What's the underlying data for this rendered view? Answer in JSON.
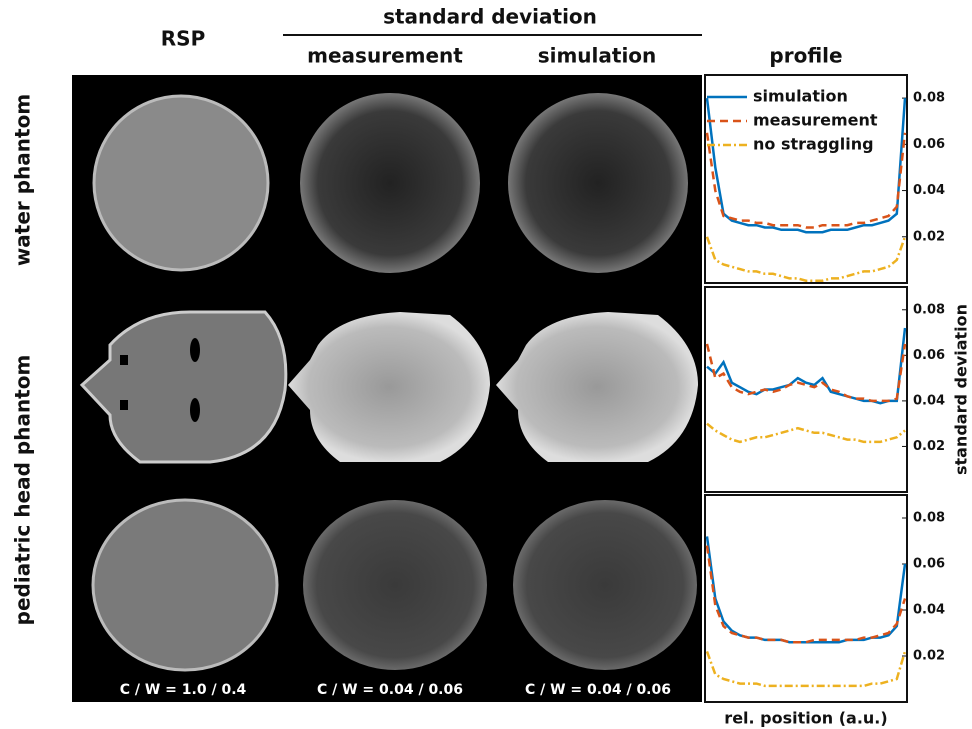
{
  "header": {
    "rsp": "RSP",
    "std_dev": "standard deviation",
    "measurement": "measurement",
    "simulation": "simulation",
    "profile": "profile"
  },
  "row_labels": [
    "water phantom",
    "pediatric head phantom"
  ],
  "window_labels": [
    "C / W = 1.0 / 0.4",
    "C / W = 0.04 / 0.06",
    "C / W = 0.04 / 0.06"
  ],
  "chart_data": [
    {
      "type": "line",
      "ylim": [
        0,
        0.09
      ],
      "yticks": [
        0.02,
        0.04,
        0.06,
        0.08
      ],
      "legend": "upper right",
      "series": [
        {
          "name": "simulation",
          "color": "#0072bd",
          "values": [
            0.08,
            0.05,
            0.03,
            0.027,
            0.026,
            0.025,
            0.025,
            0.024,
            0.024,
            0.023,
            0.023,
            0.023,
            0.022,
            0.022,
            0.022,
            0.023,
            0.023,
            0.023,
            0.024,
            0.025,
            0.025,
            0.026,
            0.027,
            0.03,
            0.08
          ]
        },
        {
          "name": "measurement",
          "color": "#d95319",
          "values": [
            0.065,
            0.04,
            0.029,
            0.028,
            0.027,
            0.027,
            0.026,
            0.026,
            0.025,
            0.025,
            0.025,
            0.025,
            0.024,
            0.024,
            0.025,
            0.025,
            0.025,
            0.025,
            0.026,
            0.026,
            0.027,
            0.028,
            0.029,
            0.033,
            0.065
          ]
        },
        {
          "name": "no straggling",
          "color": "#edb120",
          "values": [
            0.02,
            0.01,
            0.008,
            0.007,
            0.006,
            0.005,
            0.005,
            0.004,
            0.004,
            0.003,
            0.002,
            0.002,
            0.001,
            0.001,
            0.001,
            0.002,
            0.002,
            0.003,
            0.004,
            0.005,
            0.005,
            0.006,
            0.007,
            0.01,
            0.02
          ]
        }
      ]
    },
    {
      "type": "line",
      "ylim": [
        0,
        0.09
      ],
      "yticks": [
        0.02,
        0.04,
        0.06,
        0.08
      ],
      "ylabel": "standard deviation",
      "series": [
        {
          "name": "simulation",
          "color": "#0072bd",
          "values": [
            0.055,
            0.052,
            0.057,
            0.048,
            0.046,
            0.044,
            0.043,
            0.045,
            0.045,
            0.046,
            0.047,
            0.05,
            0.048,
            0.047,
            0.05,
            0.044,
            0.043,
            0.042,
            0.041,
            0.04,
            0.04,
            0.039,
            0.04,
            0.04,
            0.072
          ]
        },
        {
          "name": "measurement",
          "color": "#d95319",
          "values": [
            0.065,
            0.05,
            0.052,
            0.046,
            0.044,
            0.043,
            0.044,
            0.045,
            0.044,
            0.045,
            0.047,
            0.048,
            0.047,
            0.046,
            0.048,
            0.045,
            0.044,
            0.042,
            0.041,
            0.041,
            0.04,
            0.04,
            0.04,
            0.041,
            0.065
          ]
        },
        {
          "name": "no straggling",
          "color": "#edb120",
          "values": [
            0.03,
            0.027,
            0.025,
            0.023,
            0.022,
            0.023,
            0.024,
            0.024,
            0.025,
            0.026,
            0.027,
            0.028,
            0.027,
            0.026,
            0.026,
            0.025,
            0.024,
            0.023,
            0.023,
            0.022,
            0.022,
            0.022,
            0.023,
            0.024,
            0.027
          ]
        }
      ]
    },
    {
      "type": "line",
      "ylim": [
        0,
        0.09
      ],
      "yticks": [
        0.02,
        0.04,
        0.06,
        0.08
      ],
      "xlabel": "rel. position (a.u.)",
      "series": [
        {
          "name": "simulation",
          "color": "#0072bd",
          "values": [
            0.072,
            0.045,
            0.035,
            0.031,
            0.029,
            0.028,
            0.028,
            0.027,
            0.027,
            0.027,
            0.026,
            0.026,
            0.026,
            0.026,
            0.026,
            0.026,
            0.026,
            0.027,
            0.027,
            0.027,
            0.028,
            0.028,
            0.029,
            0.033,
            0.06
          ]
        },
        {
          "name": "measurement",
          "color": "#d95319",
          "values": [
            0.068,
            0.042,
            0.033,
            0.03,
            0.029,
            0.028,
            0.028,
            0.027,
            0.027,
            0.027,
            0.026,
            0.026,
            0.026,
            0.027,
            0.027,
            0.027,
            0.027,
            0.027,
            0.027,
            0.028,
            0.028,
            0.029,
            0.03,
            0.034,
            0.045
          ]
        },
        {
          "name": "no straggling",
          "color": "#edb120",
          "values": [
            0.022,
            0.012,
            0.01,
            0.009,
            0.008,
            0.008,
            0.008,
            0.007,
            0.007,
            0.007,
            0.007,
            0.007,
            0.007,
            0.007,
            0.007,
            0.007,
            0.007,
            0.007,
            0.007,
            0.007,
            0.008,
            0.008,
            0.009,
            0.01,
            0.022
          ]
        }
      ]
    }
  ]
}
